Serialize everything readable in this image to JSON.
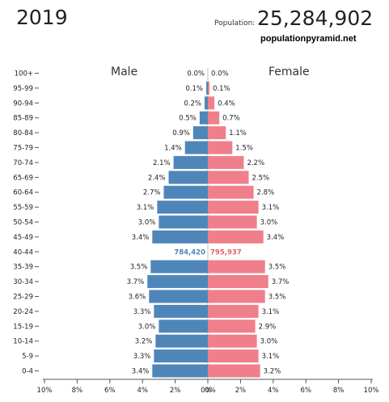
{
  "chart_data": {
    "type": "bar",
    "orientation": "horizontal-pyramid",
    "year": "2019",
    "population_label": "Population:",
    "population": "25,284,902",
    "source": "populationpyramid.net",
    "left_label": "Male",
    "right_label": "Female",
    "age_groups": [
      "100+",
      "95-99",
      "90-94",
      "85-89",
      "80-84",
      "75-79",
      "70-74",
      "65-69",
      "60-64",
      "55-59",
      "50-54",
      "45-49",
      "40-44",
      "35-39",
      "30-34",
      "25-29",
      "20-24",
      "15-19",
      "10-14",
      "5-9",
      "0-4"
    ],
    "series": [
      {
        "name": "Male",
        "values": [
          0.0,
          0.1,
          0.2,
          0.5,
          0.9,
          1.4,
          2.1,
          2.4,
          2.7,
          3.1,
          3.0,
          3.4,
          null,
          3.5,
          3.7,
          3.6,
          3.3,
          3.0,
          3.2,
          3.3,
          3.4
        ],
        "labels": [
          "0.0%",
          "0.1%",
          "0.2%",
          "0.5%",
          "0.9%",
          "1.4%",
          "2.1%",
          "2.4%",
          "2.7%",
          "3.1%",
          "3.0%",
          "3.4%",
          "",
          "3.5%",
          "3.7%",
          "3.6%",
          "3.3%",
          "3.0%",
          "3.2%",
          "3.3%",
          "3.4%"
        ]
      },
      {
        "name": "Female",
        "values": [
          0.0,
          0.1,
          0.4,
          0.7,
          1.1,
          1.5,
          2.2,
          2.5,
          2.8,
          3.1,
          3.0,
          3.4,
          null,
          3.5,
          3.7,
          3.5,
          3.1,
          2.9,
          3.0,
          3.1,
          3.2
        ],
        "labels": [
          "0.0%",
          "0.1%",
          "0.4%",
          "0.7%",
          "1.1%",
          "1.5%",
          "2.2%",
          "2.5%",
          "2.8%",
          "3.1%",
          "3.0%",
          "3.4%",
          "",
          "3.5%",
          "3.7%",
          "3.5%",
          "3.1%",
          "2.9%",
          "3.0%",
          "3.1%",
          "3.2%"
        ]
      }
    ],
    "highlight": {
      "age_group": "40-44",
      "male_count": "784,420",
      "female_count": "795,937"
    },
    "x_ticks_left": [
      "10%",
      "8%",
      "6%",
      "4%",
      "2%",
      "0%"
    ],
    "x_ticks_right": [
      "0%",
      "2%",
      "4%",
      "6%",
      "8%",
      "10%"
    ],
    "xlim": [
      0,
      10
    ],
    "colors": {
      "male": "#4f86ba",
      "female": "#ef7f8b",
      "male_count": "#4f86ba",
      "female_count": "#e0636f"
    }
  }
}
